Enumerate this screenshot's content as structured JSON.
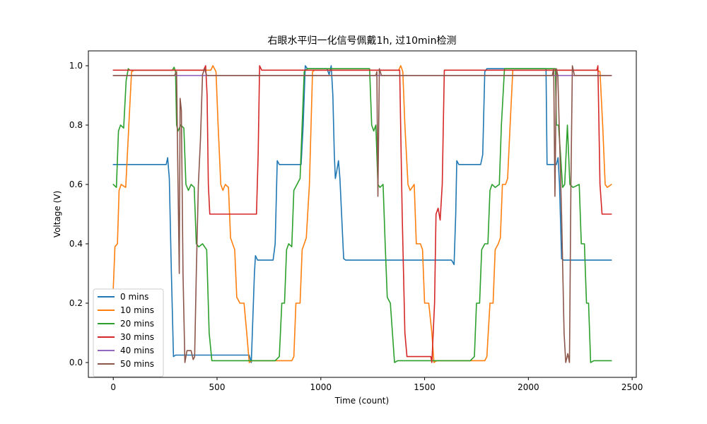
{
  "chart_data": {
    "type": "line",
    "title": "右眼水平归一化信号佩戴1h, 过10min检测",
    "xlabel": "Time (count)",
    "ylabel": "Voltage (V)",
    "xlim": [
      -120,
      2520
    ],
    "ylim": [
      -0.05,
      1.05
    ],
    "xticks": [
      0,
      500,
      1000,
      1500,
      2000,
      2500
    ],
    "yticks": [
      0.0,
      0.2,
      0.4,
      0.6,
      0.8,
      1.0
    ],
    "xtick_labels": [
      "0",
      "500",
      "1000",
      "1500",
      "2000",
      "2500"
    ],
    "ytick_labels": [
      "0.0",
      "0.2",
      "0.4",
      "0.6",
      "0.8",
      "1.0"
    ],
    "grid": false,
    "legend_position": "lower-left",
    "series": [
      {
        "name": "0 mins",
        "color": "#1f77b4",
        "points": [
          [
            0,
            0.667
          ],
          [
            255,
            0.667
          ],
          [
            262,
            0.69
          ],
          [
            270,
            0.62
          ],
          [
            280,
            0.3
          ],
          [
            290,
            0.02
          ],
          [
            300,
            0.025
          ],
          [
            655,
            0.025
          ],
          [
            665,
            0.0
          ],
          [
            680,
            0.3
          ],
          [
            685,
            0.36
          ],
          [
            695,
            0.345
          ],
          [
            770,
            0.345
          ],
          [
            780,
            0.4
          ],
          [
            790,
            0.68
          ],
          [
            800,
            0.667
          ],
          [
            905,
            0.667
          ],
          [
            915,
            0.8
          ],
          [
            925,
            1.0
          ],
          [
            935,
            0.99
          ],
          [
            1030,
            0.99
          ],
          [
            1040,
            0.97
          ],
          [
            1050,
            1.0
          ],
          [
            1058,
            0.9
          ],
          [
            1065,
            0.7
          ],
          [
            1070,
            0.62
          ],
          [
            1078,
            0.65
          ],
          [
            1085,
            0.68
          ],
          [
            1092,
            0.62
          ],
          [
            1100,
            0.5
          ],
          [
            1110,
            0.35
          ],
          [
            1120,
            0.345
          ],
          [
            1630,
            0.345
          ],
          [
            1642,
            0.33
          ],
          [
            1650,
            0.5
          ],
          [
            1655,
            0.68
          ],
          [
            1665,
            0.667
          ],
          [
            1770,
            0.667
          ],
          [
            1780,
            0.7
          ],
          [
            1790,
            0.98
          ],
          [
            1800,
            0.99
          ],
          [
            2085,
            0.99
          ],
          [
            2090,
            0.667
          ],
          [
            2100,
            0.667
          ],
          [
            2135,
            0.667
          ],
          [
            2143,
            0.69
          ],
          [
            2150,
            0.6
          ],
          [
            2160,
            0.35
          ],
          [
            2170,
            0.345
          ],
          [
            2400,
            0.345
          ]
        ]
      },
      {
        "name": "10 mins",
        "color": "#ff7f0e",
        "points": [
          [
            0,
            0.25
          ],
          [
            8,
            0.39
          ],
          [
            20,
            0.4
          ],
          [
            28,
            0.58
          ],
          [
            38,
            0.6
          ],
          [
            60,
            0.59
          ],
          [
            75,
            0.8
          ],
          [
            88,
            0.98
          ],
          [
            100,
            0.985
          ],
          [
            470,
            0.985
          ],
          [
            480,
            1.0
          ],
          [
            495,
            0.98
          ],
          [
            505,
            0.8
          ],
          [
            518,
            0.6
          ],
          [
            528,
            0.58
          ],
          [
            540,
            0.6
          ],
          [
            555,
            0.59
          ],
          [
            565,
            0.42
          ],
          [
            575,
            0.4
          ],
          [
            585,
            0.38
          ],
          [
            595,
            0.22
          ],
          [
            610,
            0.2
          ],
          [
            630,
            0.2
          ],
          [
            643,
            0.1
          ],
          [
            655,
            0.0
          ],
          [
            668,
            0.006
          ],
          [
            860,
            0.006
          ],
          [
            870,
            0.02
          ],
          [
            880,
            0.2
          ],
          [
            900,
            0.2
          ],
          [
            910,
            0.38
          ],
          [
            920,
            0.4
          ],
          [
            930,
            0.42
          ],
          [
            945,
            0.6
          ],
          [
            960,
            0.98
          ],
          [
            970,
            0.985
          ],
          [
            1375,
            0.985
          ],
          [
            1385,
            1.0
          ],
          [
            1395,
            0.98
          ],
          [
            1405,
            0.8
          ],
          [
            1420,
            0.6
          ],
          [
            1430,
            0.58
          ],
          [
            1450,
            0.6
          ],
          [
            1460,
            0.4
          ],
          [
            1480,
            0.4
          ],
          [
            1490,
            0.38
          ],
          [
            1500,
            0.2
          ],
          [
            1520,
            0.2
          ],
          [
            1535,
            0.1
          ],
          [
            1545,
            0.0
          ],
          [
            1558,
            0.006
          ],
          [
            1790,
            0.006
          ],
          [
            1800,
            0.02
          ],
          [
            1815,
            0.2
          ],
          [
            1830,
            0.2
          ],
          [
            1840,
            0.38
          ],
          [
            1855,
            0.4
          ],
          [
            1865,
            0.42
          ],
          [
            1875,
            0.6
          ],
          [
            1890,
            0.6
          ],
          [
            1900,
            0.62
          ],
          [
            1912,
            0.8
          ],
          [
            1925,
            0.985
          ],
          [
            2330,
            0.985
          ],
          [
            2345,
            0.98
          ],
          [
            2358,
            0.8
          ],
          [
            2370,
            0.6
          ],
          [
            2380,
            0.59
          ],
          [
            2400,
            0.6
          ]
        ]
      },
      {
        "name": "20 mins",
        "color": "#2ca02c",
        "points": [
          [
            0,
            0.6
          ],
          [
            15,
            0.59
          ],
          [
            25,
            0.78
          ],
          [
            35,
            0.8
          ],
          [
            50,
            0.79
          ],
          [
            62,
            0.95
          ],
          [
            72,
            0.99
          ],
          [
            80,
            0.985
          ],
          [
            285,
            0.985
          ],
          [
            293,
            0.995
          ],
          [
            300,
            0.98
          ],
          [
            305,
            0.8
          ],
          [
            312,
            0.78
          ],
          [
            325,
            0.8
          ],
          [
            340,
            0.79
          ],
          [
            350,
            0.6
          ],
          [
            362,
            0.58
          ],
          [
            375,
            0.6
          ],
          [
            390,
            0.59
          ],
          [
            400,
            0.4
          ],
          [
            412,
            0.39
          ],
          [
            430,
            0.4
          ],
          [
            450,
            0.38
          ],
          [
            462,
            0.1
          ],
          [
            475,
            0.006
          ],
          [
            780,
            0.006
          ],
          [
            800,
            0.02
          ],
          [
            812,
            0.2
          ],
          [
            825,
            0.2
          ],
          [
            835,
            0.38
          ],
          [
            845,
            0.4
          ],
          [
            860,
            0.39
          ],
          [
            870,
            0.58
          ],
          [
            885,
            0.6
          ],
          [
            900,
            0.62
          ],
          [
            910,
            0.8
          ],
          [
            920,
            0.98
          ],
          [
            935,
            0.99
          ],
          [
            1235,
            0.99
          ],
          [
            1245,
            0.8
          ],
          [
            1255,
            0.78
          ],
          [
            1265,
            0.8
          ],
          [
            1275,
            0.6
          ],
          [
            1285,
            0.59
          ],
          [
            1300,
            0.6
          ],
          [
            1310,
            0.4
          ],
          [
            1320,
            0.22
          ],
          [
            1335,
            0.2
          ],
          [
            1345,
            0.1
          ],
          [
            1355,
            0.0
          ],
          [
            1370,
            0.006
          ],
          [
            1720,
            0.006
          ],
          [
            1740,
            0.02
          ],
          [
            1750,
            0.2
          ],
          [
            1765,
            0.2
          ],
          [
            1775,
            0.38
          ],
          [
            1790,
            0.4
          ],
          [
            1805,
            0.4
          ],
          [
            1815,
            0.58
          ],
          [
            1825,
            0.6
          ],
          [
            1840,
            0.59
          ],
          [
            1860,
            0.6
          ],
          [
            1870,
            0.8
          ],
          [
            1885,
            0.99
          ],
          [
            2130,
            0.99
          ],
          [
            2135,
            0.8
          ],
          [
            2145,
            0.8
          ],
          [
            2155,
            0.7
          ],
          [
            2165,
            0.59
          ],
          [
            2175,
            0.6
          ],
          [
            2188,
            0.8
          ],
          [
            2200,
            0.6
          ],
          [
            2215,
            0.59
          ],
          [
            2245,
            0.6
          ],
          [
            2255,
            0.4
          ],
          [
            2270,
            0.4
          ],
          [
            2280,
            0.2
          ],
          [
            2290,
            0.2
          ],
          [
            2300,
            0.0
          ],
          [
            2315,
            0.006
          ],
          [
            2400,
            0.006
          ]
        ]
      },
      {
        "name": "30 mins",
        "color": "#d62728",
        "points": [
          [
            0,
            0.985
          ],
          [
            435,
            0.985
          ],
          [
            445,
            1.0
          ],
          [
            452,
            0.9
          ],
          [
            458,
            0.6
          ],
          [
            465,
            0.5
          ],
          [
            475,
            0.5
          ],
          [
            690,
            0.5
          ],
          [
            698,
            0.7
          ],
          [
            705,
            1.0
          ],
          [
            715,
            0.985
          ],
          [
            1380,
            0.985
          ],
          [
            1392,
            0.5
          ],
          [
            1405,
            0.1
          ],
          [
            1415,
            0.02
          ],
          [
            1530,
            0.02
          ],
          [
            1535,
            0.0
          ],
          [
            1548,
            0.2
          ],
          [
            1555,
            0.5
          ],
          [
            1565,
            0.52
          ],
          [
            1575,
            0.48
          ],
          [
            1585,
            0.6
          ],
          [
            1595,
            0.985
          ],
          [
            2330,
            0.985
          ],
          [
            2335,
            1.0
          ],
          [
            2345,
            0.6
          ],
          [
            2355,
            0.5
          ],
          [
            2400,
            0.5
          ]
        ]
      },
      {
        "name": "40 mins",
        "color": "#9467bd",
        "points": [
          [
            0,
            0.967
          ],
          [
            2400,
            0.967
          ]
        ]
      },
      {
        "name": "50 mins",
        "color": "#8c564b",
        "points": [
          [
            0,
            0.967
          ],
          [
            295,
            0.967
          ],
          [
            305,
            0.98
          ],
          [
            312,
            0.6
          ],
          [
            318,
            0.3
          ],
          [
            322,
            0.89
          ],
          [
            328,
            0.85
          ],
          [
            336,
            0.3
          ],
          [
            345,
            0.0
          ],
          [
            355,
            0.04
          ],
          [
            375,
            0.04
          ],
          [
            385,
            0.01
          ],
          [
            392,
            0.02
          ],
          [
            400,
            0.3
          ],
          [
            410,
            0.6
          ],
          [
            420,
            0.75
          ],
          [
            430,
            0.97
          ],
          [
            440,
            0.99
          ],
          [
            450,
            0.967
          ],
          [
            1265,
            0.967
          ],
          [
            1270,
            0.98
          ],
          [
            1275,
            0.56
          ],
          [
            1282,
            0.99
          ],
          [
            1292,
            0.967
          ],
          [
            2115,
            0.967
          ],
          [
            2122,
            0.99
          ],
          [
            2128,
            0.56
          ],
          [
            2135,
            0.99
          ],
          [
            2142,
            0.967
          ],
          [
            2160,
            0.5
          ],
          [
            2172,
            0.1
          ],
          [
            2180,
            0.0
          ],
          [
            2190,
            0.03
          ],
          [
            2198,
            0.0
          ],
          [
            2205,
            0.6
          ],
          [
            2212,
            1.0
          ],
          [
            2222,
            0.967
          ],
          [
            2400,
            0.967
          ]
        ]
      }
    ]
  }
}
